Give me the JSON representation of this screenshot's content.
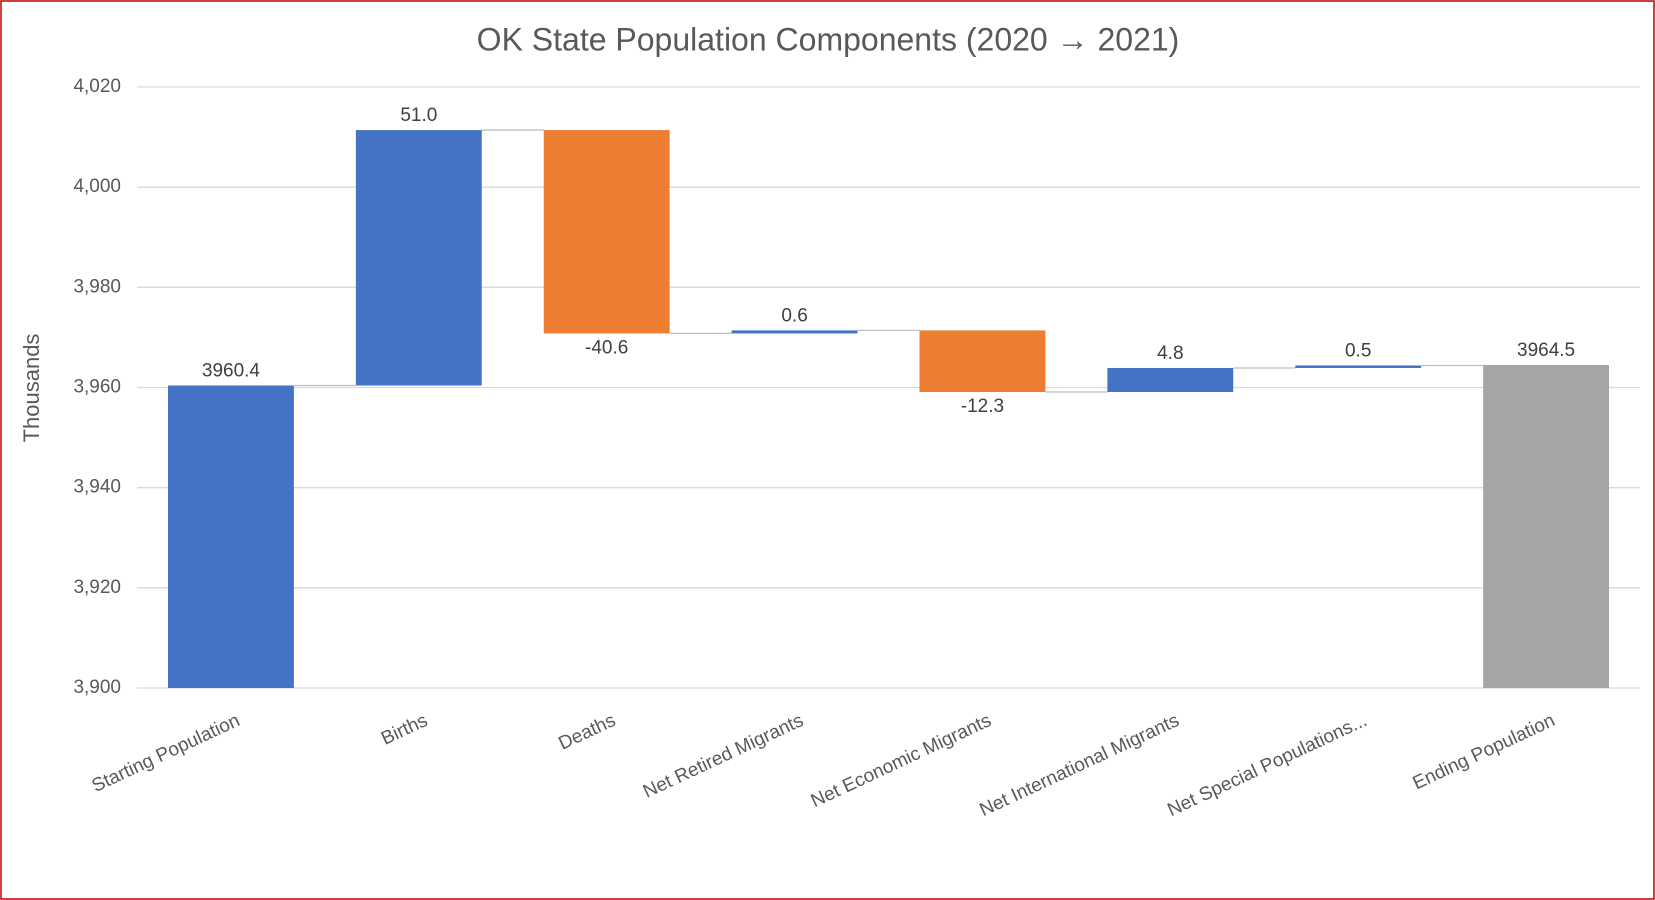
{
  "chart_data": {
    "type": "waterfall",
    "title": "OK State Population Components (2020 → 2021)",
    "y_label": "Thousands",
    "categories": [
      "Starting Population",
      "Births",
      "Deaths",
      "Net Retired Migrants",
      "Net Economic Migrants",
      "Net International Migrants",
      "Net Special Populations...",
      "Ending Population"
    ],
    "values": [
      3960.4,
      51.0,
      -40.6,
      0.6,
      -12.3,
      4.8,
      0.5,
      3964.5
    ],
    "value_labels": [
      "3960.4",
      "51.0",
      "-40.6",
      "0.6",
      "-12.3",
      "4.8",
      "0.5",
      "3964.5"
    ],
    "totals": [
      0,
      7
    ],
    "colors": [
      "#4472c4",
      "#4472c4",
      "#ed7d31",
      "#4472c4",
      "#ed7d31",
      "#4472c4",
      "#4472c4",
      "#a5a5a5"
    ],
    "ylim": [
      3900,
      4020
    ],
    "yticks": [
      {
        "value": 3900,
        "label": "3,900"
      },
      {
        "value": 3920,
        "label": "3,920"
      },
      {
        "value": 3940,
        "label": "3,940"
      },
      {
        "value": 3960,
        "label": "3,960"
      },
      {
        "value": 3980,
        "label": "3,980"
      },
      {
        "value": 4000,
        "label": "4,000"
      },
      {
        "value": 4020,
        "label": "4,020"
      }
    ],
    "grid": true
  }
}
